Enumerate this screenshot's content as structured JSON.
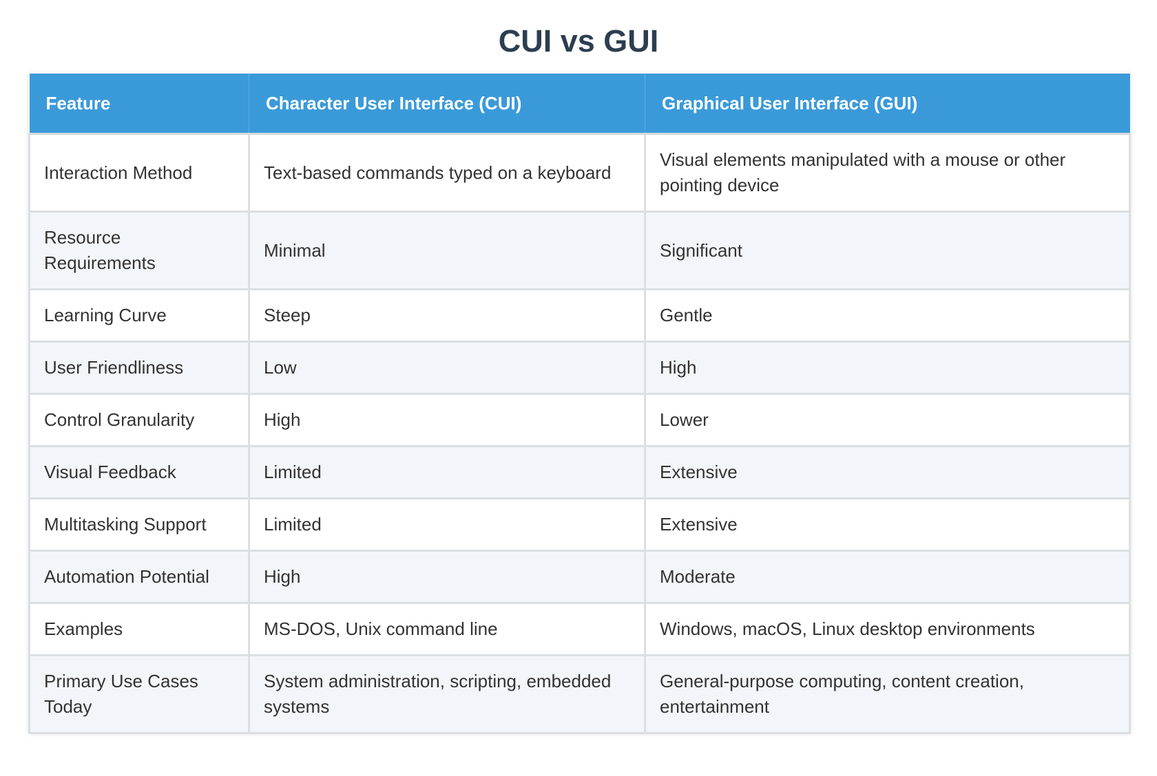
{
  "title": "CUI vs GUI",
  "colors": {
    "header_bg": "#3a9ad9",
    "title_text": "#2c3e50",
    "row_alt_bg": "#f2f5f9"
  },
  "table": {
    "headers": [
      "Feature",
      "Character User Interface (CUI)",
      "Graphical User Interface (GUI)"
    ],
    "rows": [
      [
        "Interaction Method",
        "Text-based commands typed on a keyboard",
        "Visual elements manipulated with a mouse or other pointing device"
      ],
      [
        "Resource Requirements",
        "Minimal",
        "Significant"
      ],
      [
        "Learning Curve",
        "Steep",
        "Gentle"
      ],
      [
        "User Friendliness",
        "Low",
        "High"
      ],
      [
        "Control Granularity",
        "High",
        "Lower"
      ],
      [
        "Visual Feedback",
        "Limited",
        "Extensive"
      ],
      [
        "Multitasking Support",
        "Limited",
        "Extensive"
      ],
      [
        "Automation Potential",
        "High",
        "Moderate"
      ],
      [
        "Examples",
        "MS-DOS, Unix command line",
        "Windows, macOS, Linux desktop environments"
      ],
      [
        "Primary Use Cases Today",
        "System administration, scripting, embedded systems",
        "General-purpose computing, content creation, entertainment"
      ]
    ]
  }
}
